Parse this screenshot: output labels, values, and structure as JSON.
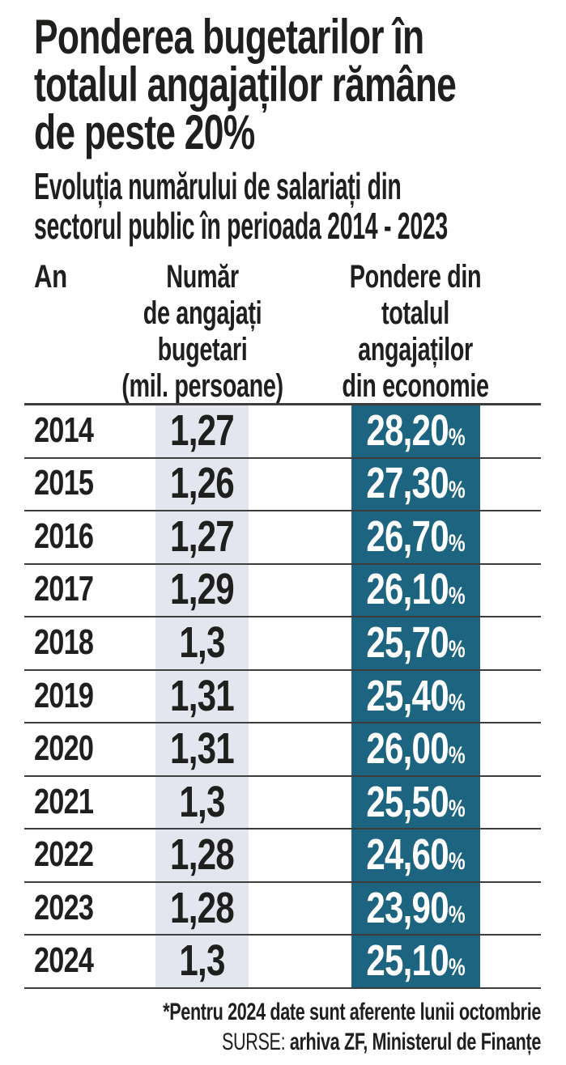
{
  "title": {
    "line1": "Ponderea bugetarilor în",
    "line2": "totalul angajaților rămâne",
    "line3": "de peste 20%"
  },
  "subtitle": {
    "line1": "Evoluția numărului de salariați din",
    "line2": "sectorul public în perioada 2014 - 2023"
  },
  "table": {
    "col_year": "An",
    "col_number_lines": [
      "Număr",
      "de angajați",
      "bugetari",
      "(mil. persoane)"
    ],
    "col_share_lines": [
      "Pondere din",
      "totalul",
      "angajaților",
      "din economie"
    ],
    "percent_symbol": "%",
    "rows": [
      {
        "year": "2014",
        "employees": "1,27",
        "share": "28,20"
      },
      {
        "year": "2015",
        "employees": "1,26",
        "share": "27,30"
      },
      {
        "year": "2016",
        "employees": "1,27",
        "share": "26,70"
      },
      {
        "year": "2017",
        "employees": "1,29",
        "share": "26,10"
      },
      {
        "year": "2018",
        "employees": "1,3",
        "share": "25,70"
      },
      {
        "year": "2019",
        "employees": "1,31",
        "share": "25,40"
      },
      {
        "year": "2020",
        "employees": "1,31",
        "share": "26,00"
      },
      {
        "year": "2021",
        "employees": "1,3",
        "share": "25,50"
      },
      {
        "year": "2022",
        "employees": "1,28",
        "share": "24,60"
      },
      {
        "year": "2023",
        "employees": "1,28",
        "share": "23,90"
      },
      {
        "year": "2024",
        "employees": "1,3",
        "share": "25,10"
      }
    ]
  },
  "footer": {
    "note": "*Pentru 2024 date sunt aferente lunii octombrie",
    "sources_label": "SURSE:",
    "sources": "arhiva ZF, Ministerul de Finanțe"
  },
  "colors": {
    "teal_column": "#1d6480",
    "gray_column": "#e3e6ef",
    "rule": "#3d3d3d",
    "text": "#1f1f1d",
    "share_text": "#ffffff"
  },
  "chart_data": {
    "type": "table",
    "title": "Ponderea bugetarilor în totalul angajaților rămâne de peste 20%",
    "subtitle": "Evoluția numărului de salariați din sectorul public în perioada 2014 - 2023",
    "columns": [
      "An",
      "Număr de angajați bugetari (mil. persoane)",
      "Pondere din totalul angajaților din economie"
    ],
    "categories": [
      "2014",
      "2015",
      "2016",
      "2017",
      "2018",
      "2019",
      "2020",
      "2021",
      "2022",
      "2023",
      "2024"
    ],
    "series": [
      {
        "name": "Număr de angajați bugetari (mil. persoane)",
        "values": [
          1.27,
          1.26,
          1.27,
          1.29,
          1.3,
          1.31,
          1.31,
          1.3,
          1.28,
          1.28,
          1.3
        ]
      },
      {
        "name": "Pondere din totalul angajaților din economie (%)",
        "values": [
          28.2,
          27.3,
          26.7,
          26.1,
          25.7,
          25.4,
          26.0,
          25.5,
          24.6,
          23.9,
          25.1
        ]
      }
    ],
    "note": "*Pentru 2024 date sunt aferente lunii octombrie",
    "sources": "SURSE: arhiva ZF, Ministerul de Finanțe"
  }
}
